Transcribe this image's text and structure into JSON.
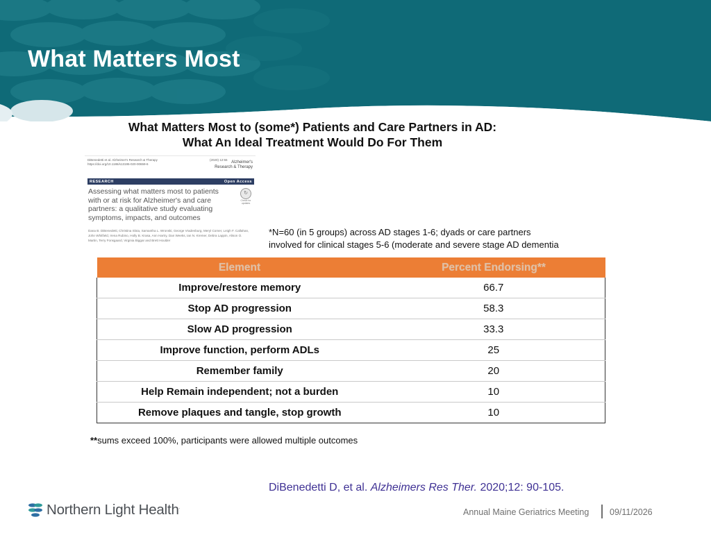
{
  "slide": {
    "title": "What Matters Most"
  },
  "figure": {
    "heading_line1": "What Matters Most to (some*) Patients and Care Partners in AD:",
    "heading_line2": "What An Ideal Treatment Would Do For Them"
  },
  "paper": {
    "citation_line1": "DiBenedetti et al. Alzheimer's Research & Therapy",
    "citation_line2": "https://doi.org/10.1186/s13195-020-00659-6",
    "pages": "(2020) 12:55",
    "journal_line1": "Alzheimer's",
    "journal_line2": "Research & Therapy",
    "section_label": "RESEARCH",
    "access_label": "Open Access",
    "title": "Assessing what matters most to patients with or at risk for Alzheimer's and care partners: a qualitative study evaluating symptoms, impacts, and outcomes",
    "update_label": "Check for updates",
    "authors": "Dana B. DiBenedetti, Christina Slota, Samantha L. Wronski, George Vradenburg, Meryl Comer, Leigh F. Callahan, John Whitfield, Irena Rubino, Holly B. Krasa, Ann Hartry, Dan Weeks, Ian N. Kremer, Debra Lappin, Alison O. Martin, Terry Fonsgaard, Virginia Biggar and Brett Houlder"
  },
  "note": {
    "line1": "*N=60 (in 5 groups) across AD stages 1-6; dyads or care partners",
    "line2": "involved for clinical stages 5-6 (moderate and severe stage AD dementia"
  },
  "table": {
    "headers": [
      "Element",
      "Percent Endorsing**"
    ],
    "rows": [
      {
        "element": "Improve/restore memory",
        "percent": "66.7"
      },
      {
        "element": "Stop AD progression",
        "percent": "58.3"
      },
      {
        "element": "Slow AD progression",
        "percent": "33.3"
      },
      {
        "element": "Improve function, perform ADLs",
        "percent": "25"
      },
      {
        "element": "Remember family",
        "percent": "20"
      },
      {
        "element": "Help Remain independent; not a burden",
        "percent": "10"
      },
      {
        "element": "Remove plaques and tangle, stop growth",
        "percent": "10"
      }
    ]
  },
  "footnote": {
    "marker": "**",
    "text": "sums exceed 100%, participants were allowed multiple outcomes"
  },
  "citation": {
    "authors": "DiBenedetti D, et al.",
    "journal": "Alzheimers Res Ther.",
    "details": "2020;12: 90-105."
  },
  "footer": {
    "logo_text": "Northern Light Health",
    "logo_mark": ".",
    "event": "Annual Maine Geriatrics Meeting",
    "date": "09/11/2026"
  },
  "colors": {
    "header_teal": "#0f6a77",
    "table_header": "#ec7e35",
    "citation_purple": "#3f3194",
    "logo_blue": "#2e6fa3",
    "logo_teal": "#2f9b9a"
  }
}
